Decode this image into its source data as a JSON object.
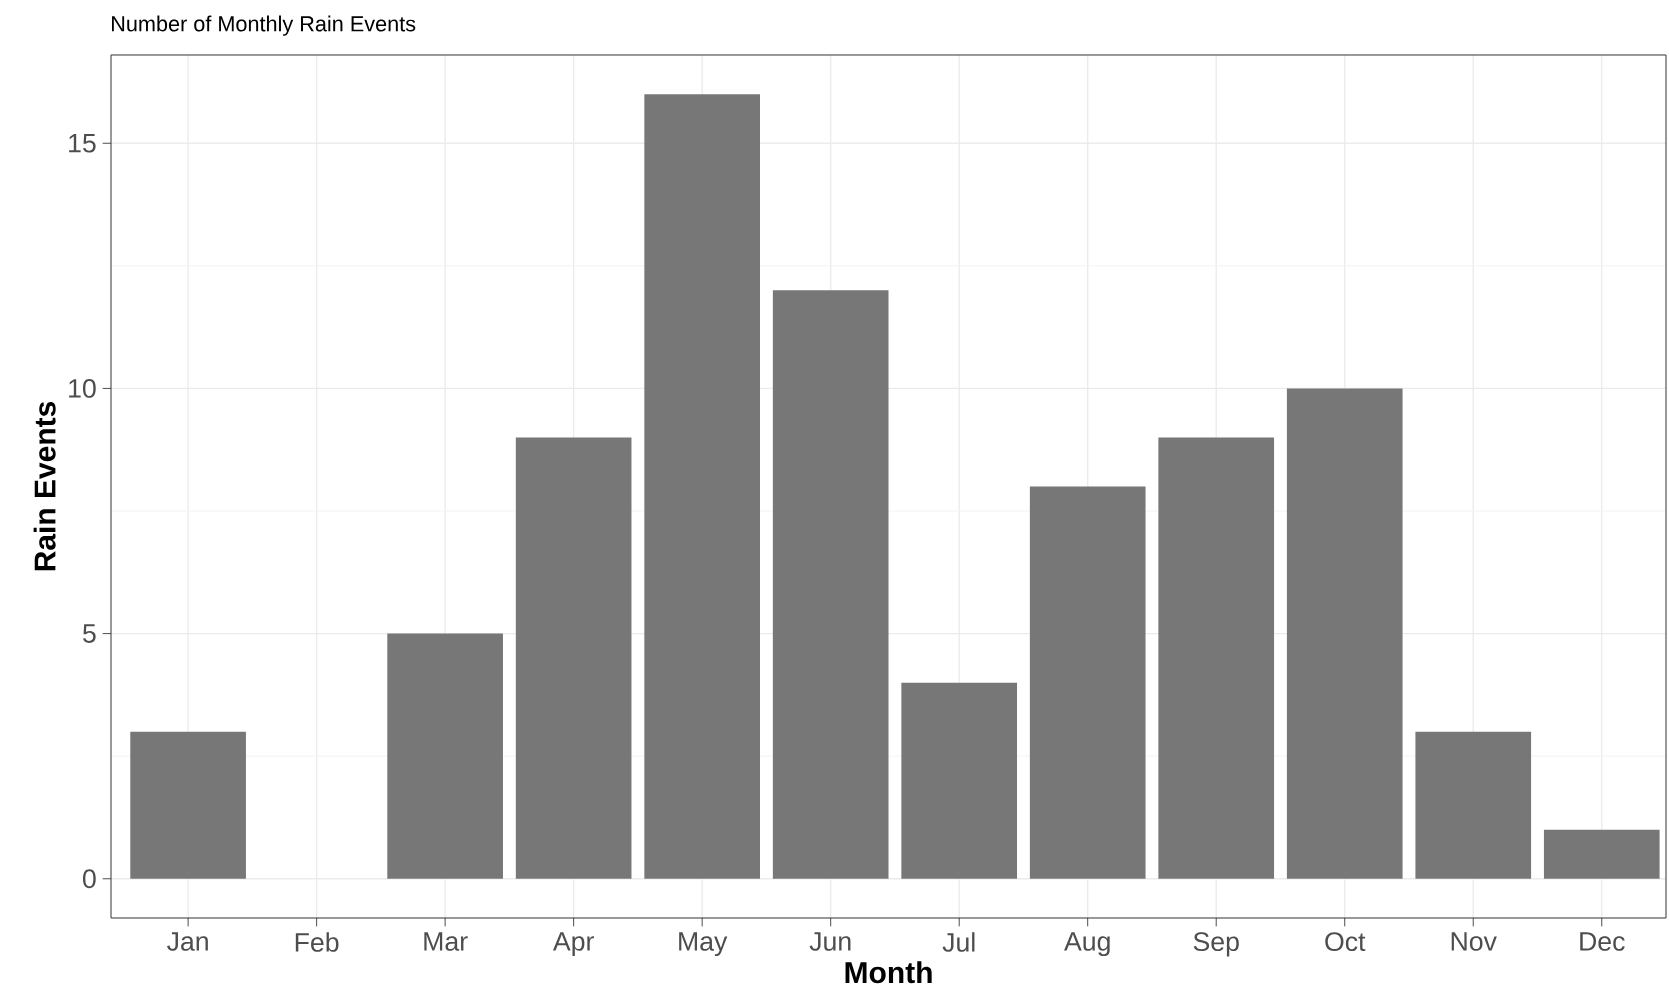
{
  "chart_data": {
    "type": "bar",
    "title": "Number of Monthly Rain Events",
    "xlabel": "Month",
    "ylabel": "Rain Events",
    "categories": [
      "Jan",
      "Feb",
      "Mar",
      "Apr",
      "May",
      "Jun",
      "Jul",
      "Aug",
      "Sep",
      "Oct",
      "Nov",
      "Dec"
    ],
    "values": [
      3,
      0,
      5,
      9,
      16,
      12,
      4,
      8,
      9,
      10,
      3,
      1
    ],
    "color": "#777777",
    "ylim": [
      -0.8,
      16.8
    ],
    "yticks": [
      0,
      5,
      10,
      15
    ],
    "grid": true
  }
}
